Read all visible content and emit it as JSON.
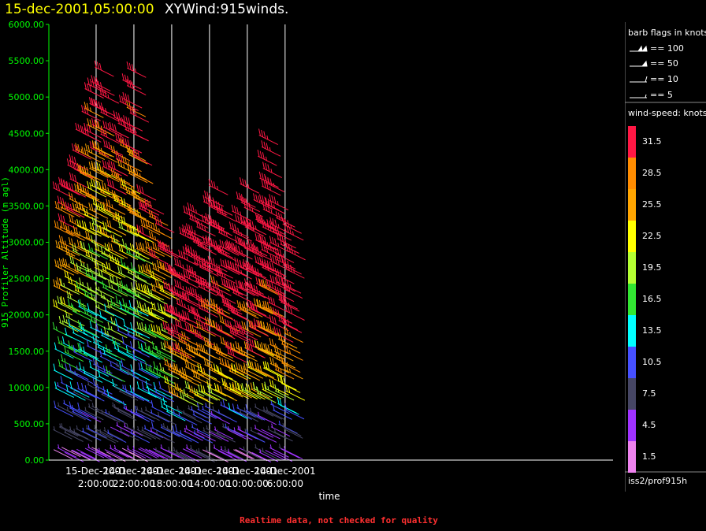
{
  "header": {
    "datetime": "15-dec-2001,05:00:00",
    "product": "XYWind:915winds."
  },
  "footer": {
    "note": "Realtime data, not checked for quality",
    "station": "iss2/prof915h"
  },
  "legend": {
    "barb_title": "barb flags in knots",
    "barb_items": [
      {
        "label": "== 100",
        "kind": "flag100"
      },
      {
        "label": "== 50",
        "kind": "flag50"
      },
      {
        "label": "== 10",
        "kind": "barb10"
      },
      {
        "label": "== 5",
        "kind": "barb5"
      }
    ],
    "speed_title": "wind-speed: knots",
    "speed_bins": [
      {
        "label": "31.5",
        "color": "#ff1744"
      },
      {
        "label": "28.5",
        "color": "#ff8c00"
      },
      {
        "label": "25.5",
        "color": "#ffa500"
      },
      {
        "label": "22.5",
        "color": "#ffff00"
      },
      {
        "label": "19.5",
        "color": "#b4ff32"
      },
      {
        "label": "16.5",
        "color": "#32e632"
      },
      {
        "label": "13.5",
        "color": "#00ffff"
      },
      {
        "label": "10.5",
        "color": "#4650ff"
      },
      {
        "label": "7.5",
        "color": "#464664"
      },
      {
        "label": "4.5",
        "color": "#a032ff"
      },
      {
        "label": "1.5",
        "color": "#ee82ee"
      }
    ]
  },
  "chart_data": {
    "type": "scatter",
    "title": "XYWind:915winds.",
    "xlabel": "time",
    "ylabel": "915 Profiler Altitude (m agl)",
    "ylim": [
      0,
      6000
    ],
    "xlim_hours_back": [
      -2.0,
      57.7
    ],
    "x_axis_direction": "reversed (time runs backward to the right)",
    "grid": "vertical lines at labeled times",
    "y_ticks": [
      "0.00",
      "500.00",
      "1000.00",
      "1500.00",
      "2000.00",
      "2500.00",
      "3000.00",
      "3500.00",
      "4000.00",
      "4500.00",
      "5000.00",
      "5500.00",
      "6000.00"
    ],
    "x_ticks": [
      {
        "hours_back": 3,
        "date": "15-Dec-2001",
        "time": "2:00:00"
      },
      {
        "hours_back": 7,
        "date": "14-Dec-2001",
        "time": "22:00:00"
      },
      {
        "hours_back": 11,
        "date": "14-Dec-2001",
        "time": "18:00:00"
      },
      {
        "hours_back": 15,
        "date": "14-Dec-2001",
        "time": "14:00:00"
      },
      {
        "hours_back": 19,
        "date": "14-Dec-2001",
        "time": "10:00:00"
      },
      {
        "hours_back": 23,
        "date": "14-Dec-2001",
        "time": "6:00:00"
      }
    ],
    "series": [
      {
        "hours_back": [
          -1.4,
          -1.0,
          -0.6,
          -0.2,
          0.2,
          0.6,
          1.0,
          1.4,
          1.8,
          2.2,
          2.6,
          3.0,
          3.4,
          3.8,
          4.2,
          4.6,
          5.0,
          5.4,
          5.8,
          6.2,
          6.6,
          7.0,
          7.4,
          7.8,
          8.2,
          8.6,
          9.0,
          9.4,
          9.8,
          10.2,
          10.6,
          11.0,
          11.4,
          11.8,
          12.2,
          12.6,
          13.0,
          13.4,
          13.8,
          14.2,
          14.6,
          15.0,
          15.4,
          15.8,
          16.2,
          16.6,
          17.0,
          17.4,
          17.8,
          18.2,
          18.6,
          19.0,
          19.4,
          19.8,
          20.2,
          20.6,
          21.0,
          21.4,
          21.8,
          22.2,
          22.6,
          23.0
        ]
      }
    ],
    "altitude_tops_m": [
      {
        "hours_back": -1.4,
        "top": 3750
      },
      {
        "hours_back": 0.2,
        "top": 4300
      },
      {
        "hours_back": 1.8,
        "top": 5200
      },
      {
        "hours_back": 3.0,
        "top": 5500
      },
      {
        "hours_back": 4.2,
        "top": 4200
      },
      {
        "hours_back": 5.0,
        "top": 5000
      },
      {
        "hours_back": 6.2,
        "top": 5500
      },
      {
        "hours_back": 7.4,
        "top": 3800
      },
      {
        "hours_back": 8.6,
        "top": 3600
      },
      {
        "hours_back": 9.8,
        "top": 3100
      },
      {
        "hours_back": 11.0,
        "top": 2600
      },
      {
        "hours_back": 12.2,
        "top": 3600
      },
      {
        "hours_back": 13.4,
        "top": 3300
      },
      {
        "hours_back": 15.0,
        "top": 4000
      },
      {
        "hours_back": 16.6,
        "top": 3000
      },
      {
        "hours_back": 18.2,
        "top": 3900
      },
      {
        "hours_back": 19.4,
        "top": 3000
      },
      {
        "hours_back": 20.2,
        "top": 4600
      },
      {
        "hours_back": 21.8,
        "top": 3400
      },
      {
        "hours_back": 23.0,
        "top": 3300
      }
    ]
  }
}
